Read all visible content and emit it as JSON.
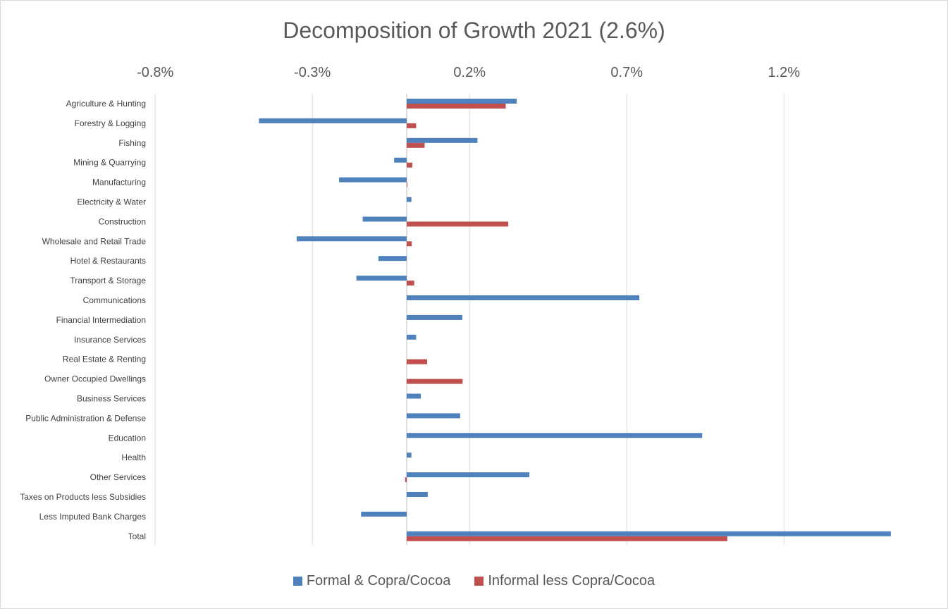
{
  "chart_data": {
    "type": "bar",
    "orientation": "horizontal",
    "title": "Decomposition of Growth 2021 (2.6%)",
    "x_axis_position": "top",
    "xlim": [
      -0.8,
      1.55
    ],
    "x_ticks": [
      -0.8,
      -0.3,
      0.2,
      0.7,
      1.2
    ],
    "x_tick_labels": [
      "-0.8%",
      "-0.3%",
      "0.2%",
      "0.7%",
      "1.2%"
    ],
    "grid": true,
    "legend_position": "bottom",
    "categories": [
      "Agriculture & Hunting",
      "Forestry & Logging",
      "Fishing",
      "Mining & Quarrying",
      "Manufacturing",
      "Electricity & Water",
      "Construction",
      "Wholesale and Retail Trade",
      "Hotel & Restaurants",
      "Transport & Storage",
      "Communications",
      "Financial Intermediation",
      "Insurance Services",
      "Real Estate & Renting",
      "Owner Occupied Dwellings",
      "Business Services",
      "Public Administration & Defense",
      "Education",
      "Health",
      "Other Services",
      "Taxes on Products less Subsidies",
      "Less Imputed Bank Charges",
      "Total"
    ],
    "series": [
      {
        "name": "Formal & Copra/Cocoa",
        "color": "#4f81bd",
        "values": [
          0.35,
          -0.47,
          0.225,
          -0.04,
          -0.215,
          0.015,
          -0.14,
          -0.35,
          -0.09,
          -0.16,
          0.74,
          0.177,
          0.03,
          0.0,
          0.0,
          0.045,
          0.17,
          0.94,
          0.015,
          0.39,
          0.067,
          -0.145,
          1.54
        ]
      },
      {
        "name": "Informal less Copra/Cocoa",
        "color": "#c0504d",
        "values": [
          0.315,
          0.03,
          0.057,
          0.018,
          0.002,
          0.0,
          0.323,
          0.016,
          0.0,
          0.024,
          0.0,
          0.0,
          0.0,
          0.065,
          0.178,
          0.0,
          0.0,
          0.0,
          0.0,
          -0.005,
          0.0,
          0.0,
          1.02
        ]
      }
    ]
  }
}
